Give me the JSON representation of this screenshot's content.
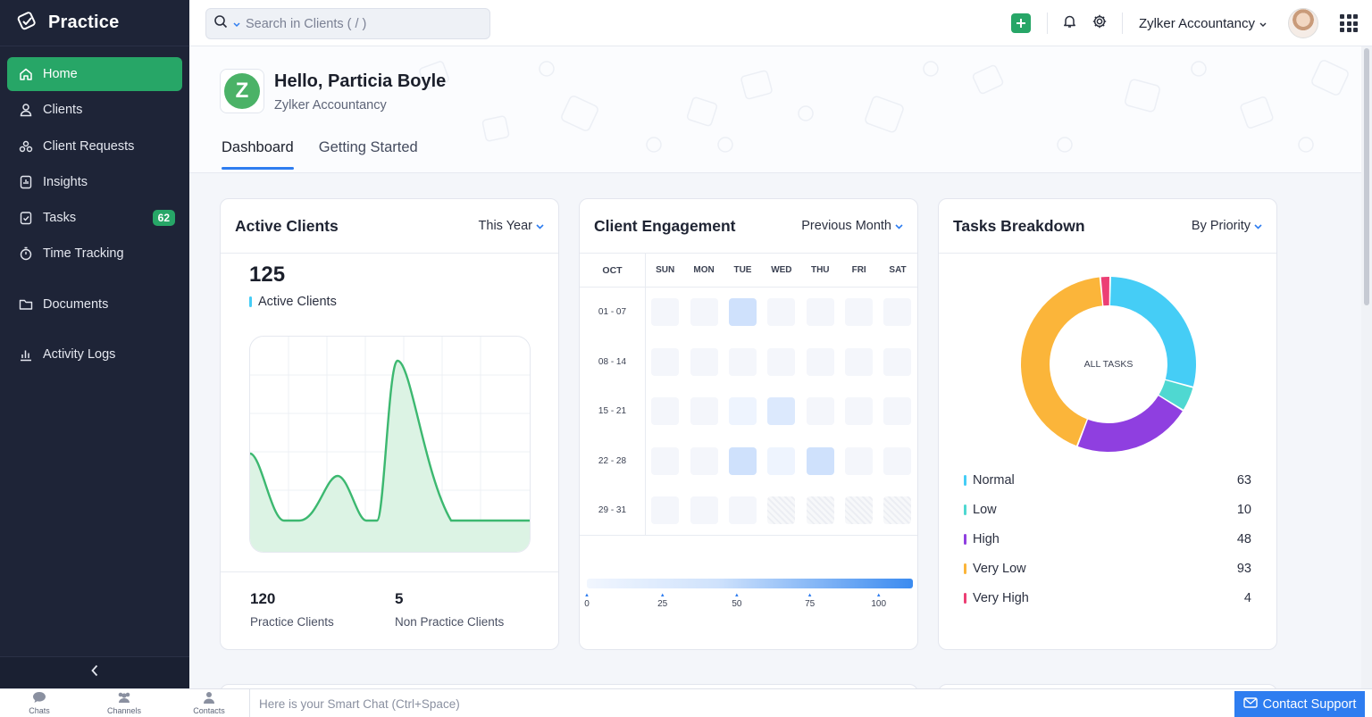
{
  "app": {
    "name": "Practice"
  },
  "sidebar": {
    "items": [
      {
        "label": "Home",
        "icon": "home-icon",
        "active": true
      },
      {
        "label": "Clients",
        "icon": "user-icon"
      },
      {
        "label": "Client Requests",
        "icon": "requests-icon"
      },
      {
        "label": "Insights",
        "icon": "insights-icon"
      },
      {
        "label": "Tasks",
        "icon": "tasks-icon",
        "badge": "62"
      },
      {
        "label": "Time Tracking",
        "icon": "timer-icon"
      },
      {
        "label": "Documents",
        "icon": "folder-icon"
      },
      {
        "label": "Activity Logs",
        "icon": "bar-chart-icon"
      }
    ]
  },
  "topbar": {
    "search_placeholder": "Search in Clients ( / )",
    "org_name": "Zylker Accountancy"
  },
  "header": {
    "logo_letter": "Z",
    "greeting": "Hello, Particia Boyle",
    "org": "Zylker Accountancy",
    "tabs": [
      "Dashboard",
      "Getting Started"
    ]
  },
  "active_clients": {
    "title": "Active Clients",
    "filter": "This Year",
    "total": "125",
    "legend": "Active Clients",
    "practice_count": "120",
    "practice_label": "Practice Clients",
    "non_practice_count": "5",
    "non_practice_label": "Non Practice Clients"
  },
  "engagement": {
    "title": "Client Engagement",
    "filter": "Previous Month",
    "month": "OCT",
    "days": [
      "SUN",
      "MON",
      "TUE",
      "WED",
      "THU",
      "FRI",
      "SAT"
    ],
    "weeks": [
      "01 - 07",
      "08 - 14",
      "15 - 21",
      "22 - 28",
      "29 - 31"
    ],
    "scale_ticks": [
      "0",
      "25",
      "50",
      "75",
      "100"
    ]
  },
  "tasks": {
    "title": "Tasks Breakdown",
    "filter": "By Priority",
    "center_label": "ALL TASKS",
    "items": [
      {
        "label": "Normal",
        "value": "63",
        "color": "#45cdf6"
      },
      {
        "label": "Low",
        "value": "10",
        "color": "#4fd8d1"
      },
      {
        "label": "High",
        "value": "48",
        "color": "#8f3fe0"
      },
      {
        "label": "Very Low",
        "value": "93",
        "color": "#fbb53a"
      },
      {
        "label": "Very High",
        "value": "4",
        "color": "#ec3f74"
      }
    ]
  },
  "bottombar": {
    "chats": "Chats",
    "channels": "Channels",
    "contacts": "Contacts",
    "smart_chat": "Here is your Smart Chat (Ctrl+Space)",
    "support": "Contact Support"
  },
  "colors": {
    "accent_green": "#27a667",
    "accent_blue": "#2e7df0",
    "sidebar_bg": "#1e2437"
  }
}
